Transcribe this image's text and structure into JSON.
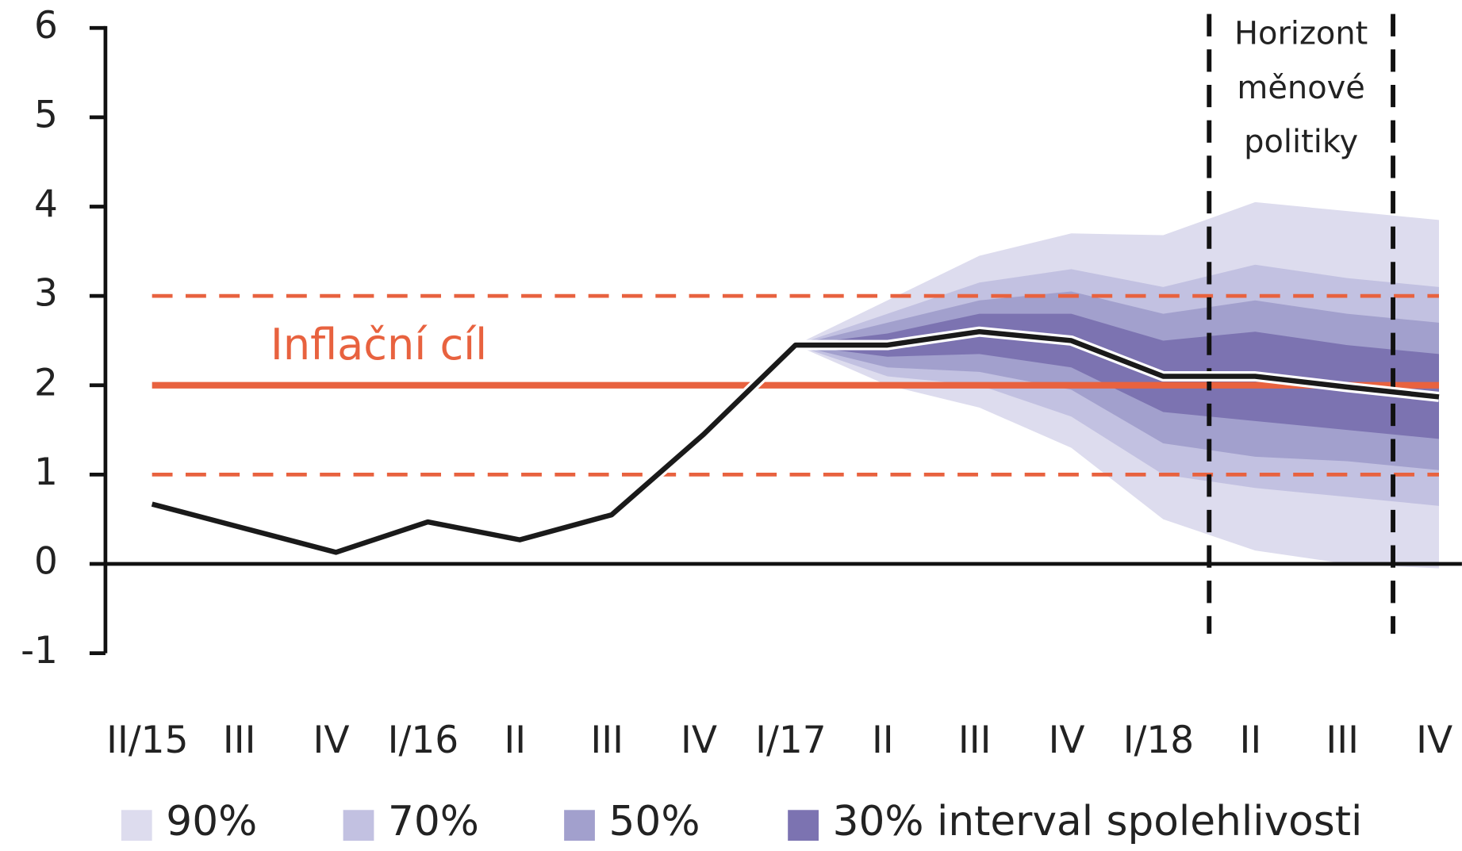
{
  "chart_data": {
    "type": "fan",
    "categories": [
      "II/15",
      "III",
      "IV",
      "I/16",
      "II",
      "III",
      "IV",
      "I/17",
      "II",
      "III",
      "IV",
      "I/18",
      "II",
      "III",
      "IV"
    ],
    "ylim": [
      -1,
      6
    ],
    "yticks": [
      -1,
      0,
      1,
      2,
      3,
      4,
      5,
      6
    ],
    "line": {
      "color": "#1a1a1a",
      "values": [
        0.67,
        0.4,
        0.13,
        0.47,
        0.27,
        0.55,
        1.45,
        2.45,
        2.45,
        2.6,
        2.5,
        2.1,
        2.1,
        1.98,
        1.87
      ]
    },
    "series": [
      {
        "name": "90%",
        "color": "#dddcee",
        "upper": [
          null,
          null,
          null,
          null,
          null,
          null,
          null,
          2.45,
          2.95,
          3.45,
          3.7,
          3.68,
          4.05,
          3.95,
          3.85
        ],
        "lower": [
          null,
          null,
          null,
          null,
          null,
          null,
          null,
          2.45,
          2.0,
          1.75,
          1.3,
          0.5,
          0.15,
          0.0,
          -0.05
        ]
      },
      {
        "name": "70%",
        "color": "#c2c1e1",
        "upper": [
          null,
          null,
          null,
          null,
          null,
          null,
          null,
          2.45,
          2.8,
          3.15,
          3.3,
          3.1,
          3.35,
          3.2,
          3.1
        ],
        "lower": [
          null,
          null,
          null,
          null,
          null,
          null,
          null,
          2.45,
          2.1,
          2.0,
          1.65,
          1.0,
          0.85,
          0.75,
          0.65
        ]
      },
      {
        "name": "50%",
        "color": "#a2a0cd",
        "upper": [
          null,
          null,
          null,
          null,
          null,
          null,
          null,
          2.45,
          2.7,
          2.95,
          3.05,
          2.8,
          2.95,
          2.8,
          2.7
        ],
        "lower": [
          null,
          null,
          null,
          null,
          null,
          null,
          null,
          2.45,
          2.2,
          2.15,
          1.95,
          1.35,
          1.2,
          1.15,
          1.05
        ]
      },
      {
        "name": "30%",
        "color": "#7c73b1",
        "upper": [
          null,
          null,
          null,
          null,
          null,
          null,
          null,
          2.45,
          2.58,
          2.8,
          2.8,
          2.5,
          2.6,
          2.45,
          2.35
        ],
        "lower": [
          null,
          null,
          null,
          null,
          null,
          null,
          null,
          2.45,
          2.32,
          2.35,
          2.2,
          1.7,
          1.6,
          1.5,
          1.4
        ]
      }
    ],
    "legend_suffix": "interval spolehlivosti",
    "target": {
      "label": "Inflační cíl",
      "value": 2,
      "band": [
        1,
        3
      ],
      "color": "#e8623f"
    },
    "horizon": {
      "x": [
        11.5,
        13.5
      ],
      "label": [
        "Horizont",
        "měnové",
        "politiky"
      ]
    }
  }
}
